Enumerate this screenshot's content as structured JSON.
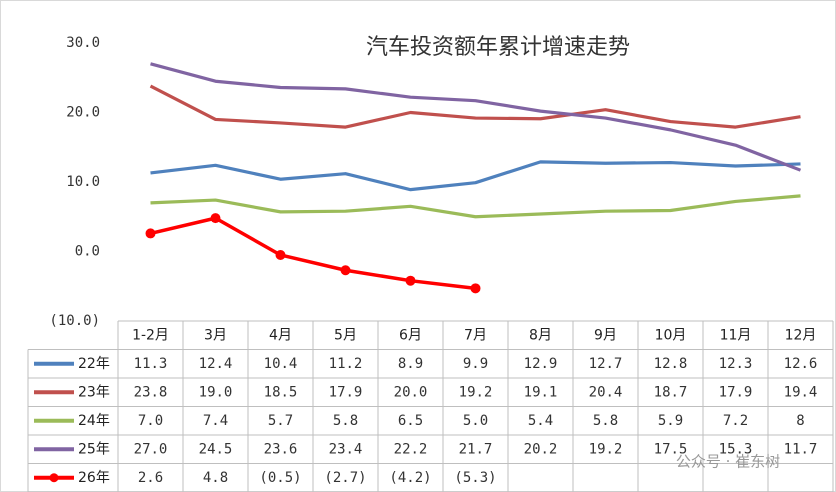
{
  "chart_data": {
    "type": "line",
    "title": "汽车投资额年累计增速走势",
    "watermark": "公众号 · 崔东树",
    "categories": [
      "1-2月",
      "3月",
      "4月",
      "5月",
      "6月",
      "7月",
      "8月",
      "9月",
      "10月",
      "11月",
      "12月"
    ],
    "ylim": [
      -10,
      30
    ],
    "yticks": [
      {
        "value": -10,
        "label": "(10.0)"
      },
      {
        "value": 0,
        "label": "0.0"
      },
      {
        "value": 10,
        "label": "10.0"
      },
      {
        "value": 20,
        "label": "20.0"
      },
      {
        "value": 30,
        "label": "30.0"
      }
    ],
    "grid": false,
    "series": [
      {
        "name": "22年",
        "color": "#4f81bd",
        "markers": false,
        "values": [
          11.3,
          12.4,
          10.4,
          11.2,
          8.9,
          9.9,
          12.9,
          12.7,
          12.8,
          12.3,
          12.6
        ],
        "value_labels": [
          "11.3",
          "12.4",
          "10.4",
          "11.2",
          "8.9",
          "9.9",
          "12.9",
          "12.7",
          "12.8",
          "12.3",
          "12.6"
        ]
      },
      {
        "name": "23年",
        "color": "#c0504d",
        "markers": false,
        "values": [
          23.8,
          19.0,
          18.5,
          17.9,
          20.0,
          19.2,
          19.1,
          20.4,
          18.7,
          17.9,
          19.4
        ],
        "value_labels": [
          "23.8",
          "19.0",
          "18.5",
          "17.9",
          "20.0",
          "19.2",
          "19.1",
          "20.4",
          "18.7",
          "17.9",
          "19.4"
        ]
      },
      {
        "name": "24年",
        "color": "#9bbb59",
        "markers": false,
        "values": [
          7.0,
          7.4,
          5.7,
          5.8,
          6.5,
          5.0,
          5.4,
          5.8,
          5.9,
          7.2,
          8
        ],
        "value_labels": [
          "7.0",
          "7.4",
          "5.7",
          "5.8",
          "6.5",
          "5.0",
          "5.4",
          "5.8",
          "5.9",
          "7.2",
          "8"
        ]
      },
      {
        "name": "25年",
        "color": "#8064a2",
        "markers": false,
        "values": [
          27.0,
          24.5,
          23.6,
          23.4,
          22.2,
          21.7,
          20.2,
          19.2,
          17.5,
          15.3,
          11.7
        ],
        "value_labels": [
          "27.0",
          "24.5",
          "23.6",
          "23.4",
          "22.2",
          "21.7",
          "20.2",
          "19.2",
          "17.5",
          "15.3",
          "11.7"
        ]
      },
      {
        "name": "26年",
        "color": "#ff0000",
        "markers": true,
        "values": [
          2.6,
          4.8,
          -0.5,
          -2.7,
          -4.2,
          -5.3,
          null,
          null,
          null,
          null,
          null
        ],
        "value_labels": [
          "2.6",
          "4.8",
          "(0.5)",
          "(2.7)",
          "(4.2)",
          "(5.3)",
          null,
          null,
          null,
          null,
          null
        ]
      }
    ]
  }
}
